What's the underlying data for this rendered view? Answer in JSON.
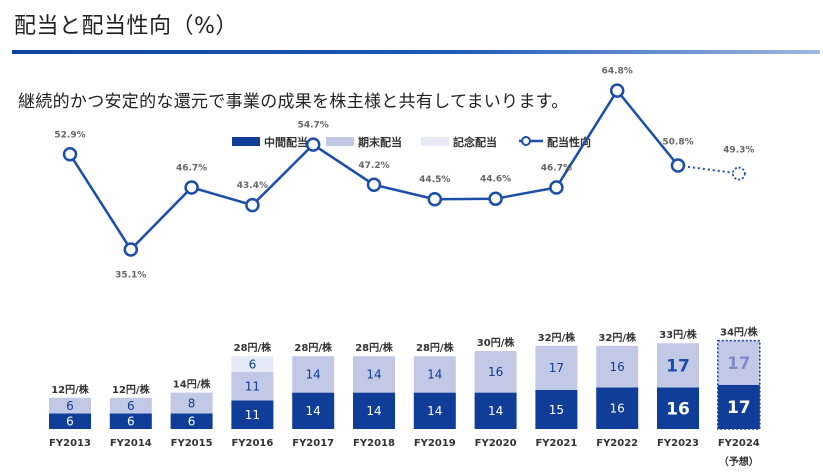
{
  "header": {
    "title": "配当と配当性向（%）",
    "subtitle": "継続的かつ安定的な還元で事業の成果を株主様と共有してまいります。"
  },
  "chart_data": {
    "type": "bar",
    "title": "配当と配当性向（%）",
    "categories": [
      "FY2013",
      "FY2014",
      "FY2015",
      "FY2016",
      "FY2017",
      "FY2018",
      "FY2019",
      "FY2020",
      "FY2021",
      "FY2022",
      "FY2023",
      "FY2024"
    ],
    "forecast_note": "（予想）",
    "forecast_index": 11,
    "series": [
      {
        "name": "中間配当",
        "values": [
          6,
          6,
          6,
          11,
          14,
          14,
          14,
          14,
          15,
          16,
          16,
          17
        ]
      },
      {
        "name": "期末配当",
        "values": [
          6,
          6,
          8,
          11,
          14,
          14,
          14,
          16,
          17,
          16,
          17,
          17
        ]
      },
      {
        "name": "記念配当",
        "values": [
          0,
          0,
          0,
          6,
          0,
          0,
          0,
          0,
          0,
          0,
          0,
          0
        ]
      }
    ],
    "totals": [
      "12円/株",
      "12円/株",
      "14円/株",
      "28円/株",
      "28円/株",
      "28円/株",
      "28円/株",
      "30円/株",
      "32円/株",
      "32円/株",
      "33円/株",
      "34円/株"
    ],
    "line": {
      "name": "配当性向",
      "unit": "%",
      "values": [
        52.9,
        35.1,
        46.7,
        43.4,
        54.7,
        47.2,
        44.5,
        44.6,
        46.7,
        64.8,
        50.8,
        49.3
      ]
    },
    "line_labels": [
      "52.9%",
      "35.1%",
      "46.7%",
      "43.4%",
      "54.7%",
      "47.2%",
      "44.5%",
      "44.6%",
      "46.7%",
      "64.8%",
      "50.8%",
      "49.3%"
    ],
    "colors": {
      "interim": "#0f3d98",
      "final": "#c2c9e6",
      "commemorative": "#e6e9f6",
      "line": "#1a4ea8",
      "forecast_text": "#7f8cc9",
      "highlight_text": "#1a4ea8"
    }
  }
}
